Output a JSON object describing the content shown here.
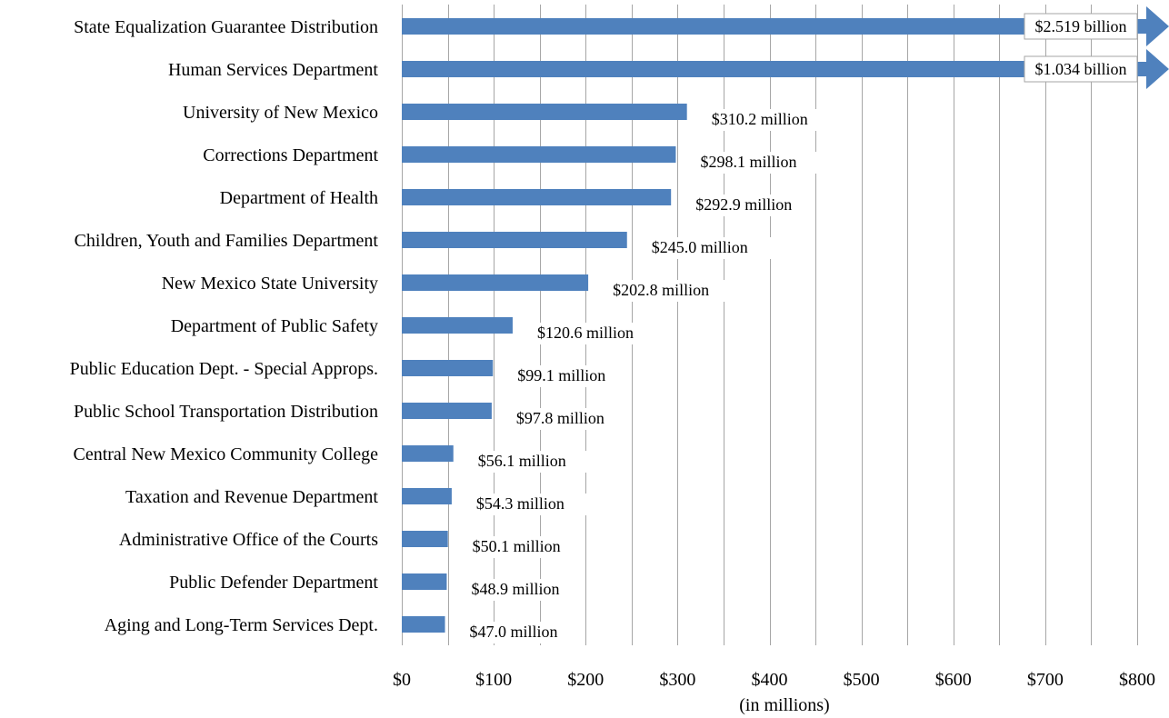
{
  "chart_data": {
    "type": "bar",
    "orientation": "horizontal",
    "title": "",
    "xlabel": "(in millions)",
    "ylabel": "",
    "xlim": [
      0,
      800
    ],
    "x_ticks": [
      {
        "value": 0,
        "label": "$0"
      },
      {
        "value": 100,
        "label": "$100"
      },
      {
        "value": 200,
        "label": "$200"
      },
      {
        "value": 300,
        "label": "$300"
      },
      {
        "value": 400,
        "label": "$400"
      },
      {
        "value": 500,
        "label": "$500"
      },
      {
        "value": 600,
        "label": "$600"
      },
      {
        "value": 700,
        "label": "$700"
      },
      {
        "value": 800,
        "label": "$800"
      }
    ],
    "grid": true,
    "legend": "none",
    "bar_color": "#4f81bd",
    "categories": [
      "State Equalization Guarantee Distribution",
      "Human Services Department",
      "University of New Mexico",
      "Corrections Department",
      "Department of Health",
      "Children, Youth and Families Department",
      "New Mexico State University",
      "Department of Public Safety",
      "Public Education Dept. - Special Approps.",
      "Public School Transportation Distribution",
      "Central New Mexico Community College",
      "Taxation and Revenue Department",
      "Administrative Office of the Courts",
      "Public Defender Department",
      "Aging and Long-Term Services Dept."
    ],
    "values": [
      2519,
      1034,
      310.2,
      298.1,
      292.9,
      245.0,
      202.8,
      120.6,
      99.1,
      97.8,
      56.1,
      54.3,
      50.1,
      48.9,
      47.0
    ],
    "data_labels": [
      "$2.519 billion",
      "$1.034 billion",
      "$310.2 million",
      "$298.1 million",
      "$292.9 million",
      "$245.0 million",
      "$202.8 million",
      "$120.6 million",
      "$99.1 million",
      "$97.8 million",
      "$56.1 million",
      "$54.3 million",
      "$50.1 million",
      "$48.9 million",
      "$47.0 million"
    ],
    "truncated": [
      true,
      true,
      false,
      false,
      false,
      false,
      false,
      false,
      false,
      false,
      false,
      false,
      false,
      false,
      false
    ]
  }
}
